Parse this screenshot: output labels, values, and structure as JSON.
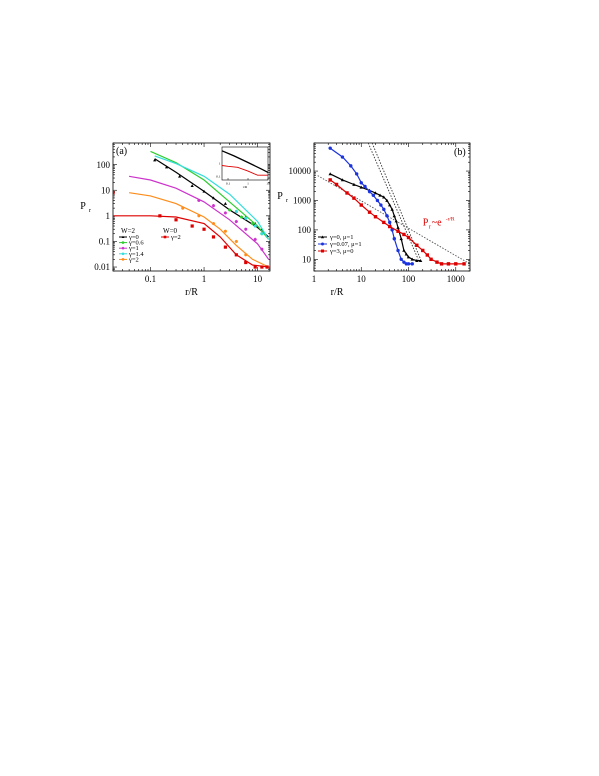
{
  "chart_data": [
    {
      "type": "line",
      "panel_label": "(a)",
      "xlabel": "r/R",
      "ylabel": "P",
      "ylabel_sub": "r",
      "x_scale": "log",
      "y_scale": "log",
      "xlim": [
        0.02,
        17
      ],
      "ylim": [
        0.007,
        700
      ],
      "x_ticks": [
        {
          "v": 0.1,
          "label": "0.1"
        },
        {
          "v": 1,
          "label": "1"
        },
        {
          "v": 10,
          "label": "10"
        }
      ],
      "y_ticks": [
        {
          "v": 0.01,
          "label": "0.01"
        },
        {
          "v": 0.1,
          "label": "0.1"
        },
        {
          "v": 1,
          "label": "1"
        },
        {
          "v": 10,
          "label": "10"
        },
        {
          "v": 100,
          "label": "100"
        }
      ],
      "legend": {
        "group1": "W=2",
        "group2": "W=0",
        "placement": "bottom-left",
        "entries": [
          {
            "label": "γ=0",
            "color": "#000000",
            "marker": "triangle"
          },
          {
            "label": "γ=0.6",
            "color": "#2ecc2e",
            "marker": "star"
          },
          {
            "label": "γ=1",
            "color": "#cc33cc",
            "marker": "star"
          },
          {
            "label": "γ=1.4",
            "color": "#33dddd",
            "marker": "star"
          },
          {
            "label": "γ=2",
            "color": "#ff8c1a",
            "marker": "star"
          },
          {
            "label": "γ=2",
            "color": "#dd0000",
            "marker": "square",
            "group": "W=0"
          }
        ]
      },
      "series": [
        {
          "color": "#000000",
          "line": {
            "x": [
              0.12,
              0.3,
              1,
              3,
              10,
              16
            ],
            "y": [
              170,
              50,
              9,
              1.7,
              0.35,
              0.15
            ]
          },
          "points": {
            "x": [
              0.12,
              0.2,
              0.35,
              0.6,
              1,
              1.5,
              2.5,
              4,
              6,
              9,
              12
            ],
            "y": [
              150,
              80,
              35,
              15,
              9,
              5,
              3,
              1.5,
              0.9,
              0.5,
              0.3
            ]
          }
        },
        {
          "color": "#2ecc2e",
          "line": {
            "x": [
              0.1,
              0.3,
              1,
              3,
              10,
              16
            ],
            "y": [
              330,
              120,
              25,
              3.5,
              0.4,
              0.12
            ]
          },
          "points": {
            "x": [
              3,
              5,
              8,
              12
            ],
            "y": [
              1.7,
              0.9,
              0.5,
              0.2
            ]
          }
        },
        {
          "color": "#cc33cc",
          "line": {
            "x": [
              0.04,
              0.1,
              0.3,
              1,
              3,
              10,
              16
            ],
            "y": [
              35,
              25,
              12,
              3.5,
              0.7,
              0.08,
              0.02
            ]
          },
          "points": {
            "x": [
              0.8,
              1.5,
              2.5,
              4,
              6,
              9,
              12
            ],
            "y": [
              4,
              2.5,
              1.3,
              0.6,
              0.3,
              0.12,
              0.05
            ]
          }
        },
        {
          "color": "#33dddd",
          "line": {
            "x": [
              0.12,
              0.3,
              1,
              3,
              10,
              16
            ],
            "y": [
              220,
              110,
              35,
              7,
              0.6,
              0.12
            ]
          },
          "points": {
            "x": [
              4,
              6,
              9,
              12
            ],
            "y": [
              1.5,
              0.8,
              0.4,
              0.2
            ]
          }
        },
        {
          "color": "#ff8c1a",
          "line": {
            "x": [
              0.04,
              0.1,
              0.3,
              1,
              2,
              4,
              8,
              16
            ],
            "y": [
              8,
              6,
              3,
              0.9,
              0.3,
              0.07,
              0.02,
              0.01
            ]
          },
          "points": {
            "x": [
              0.4,
              0.8,
              1.5,
              2.5,
              4,
              6
            ],
            "y": [
              2,
              1,
              0.5,
              0.25,
              0.1,
              0.03
            ]
          }
        },
        {
          "color": "#dd0000",
          "line": {
            "x": [
              0.02,
              0.1,
              0.3,
              1,
              2,
              4,
              8,
              16
            ],
            "y": [
              1,
              1,
              0.9,
              0.5,
              0.15,
              0.03,
              0.012,
              0.01
            ]
          },
          "points": {
            "x": [
              0.02,
              0.15,
              0.3,
              0.6,
              1,
              1.5,
              2.5,
              4,
              6,
              9,
              12,
              15
            ],
            "y": [
              8,
              1,
              0.7,
              0.4,
              0.3,
              0.15,
              0.06,
              0.03,
              0.015,
              0.01,
              0.01,
              0.01
            ]
          }
        }
      ],
      "inset": {
        "x_scale": "log",
        "y_scale": "log",
        "xlim": [
          0.05,
          10
        ],
        "ylim": [
          0.05,
          20
        ],
        "xlabel": "r/R",
        "x_ticks": [
          {
            "v": 0.1,
            "label": "0.1"
          },
          {
            "v": 1,
            "label": "1"
          },
          {
            "v": 10,
            "label": "10"
          }
        ],
        "y_ticks": [
          {
            "v": 0.1,
            "label": "0.1"
          },
          {
            "v": 1,
            "label": "1"
          }
        ],
        "series": [
          {
            "color": "#000000",
            "x": [
              0.05,
              0.2,
              1,
              5,
              10
            ],
            "y": [
              10,
              4,
              1.2,
              0.35,
              0.2
            ]
          },
          {
            "color": "#dd0000",
            "x": [
              0.05,
              0.1,
              0.3,
              1,
              3,
              10
            ],
            "y": [
              0.7,
              0.6,
              0.5,
              0.25,
              0.12,
              0.12
            ]
          }
        ]
      }
    },
    {
      "type": "line",
      "panel_label": "(b)",
      "xlabel": "r/R",
      "ylabel": "P",
      "ylabel_sub": "r",
      "x_scale": "log",
      "y_scale": "log",
      "xlim": [
        1,
        2000
      ],
      "ylim": [
        4,
        90000
      ],
      "x_ticks": [
        {
          "v": 1,
          "label": "1"
        },
        {
          "v": 10,
          "label": "10"
        },
        {
          "v": 100,
          "label": "100"
        },
        {
          "v": 1000,
          "label": "1000"
        }
      ],
      "y_ticks": [
        {
          "v": 10,
          "label": "10"
        },
        {
          "v": 100,
          "label": "100"
        },
        {
          "v": 1000,
          "label": "1000"
        },
        {
          "v": 10000,
          "label": "10000"
        }
      ],
      "annotation": {
        "text": "P",
        "sub": "r",
        "rest": "~e",
        "sup": "-r/R",
        "color": "#dd0000",
        "x": 200,
        "y": 140
      },
      "legend": {
        "placement": "bottom-left",
        "entries": [
          {
            "label": "γ=0, μ=1",
            "color": "#000000",
            "marker": "triangle"
          },
          {
            "label": "γ=0.07, μ=1",
            "color": "#1a33dd",
            "marker": "circle"
          },
          {
            "label": "γ=3, μ=0",
            "color": "#dd0000",
            "marker": "square"
          }
        ]
      },
      "series": [
        {
          "color": "#000000",
          "x": [
            2.2,
            4,
            7,
            10,
            15,
            20,
            25,
            30,
            35,
            40,
            45,
            50,
            55,
            60,
            70,
            80,
            90,
            100,
            120,
            150,
            180
          ],
          "y": [
            8000,
            5000,
            3500,
            2800,
            2200,
            1800,
            1500,
            1300,
            1000,
            700,
            500,
            300,
            200,
            120,
            50,
            20,
            15,
            12,
            10,
            9,
            9
          ]
        },
        {
          "color": "#1a33dd",
          "x": [
            2.2,
            4,
            6,
            8,
            10,
            12,
            15,
            18,
            22,
            26,
            30,
            35,
            40,
            45,
            50,
            60,
            70,
            80,
            90,
            100,
            120
          ],
          "y": [
            60000,
            30000,
            15000,
            8000,
            4000,
            3000,
            2000,
            1500,
            1000,
            700,
            500,
            300,
            180,
            100,
            50,
            20,
            10,
            8,
            7,
            7,
            7
          ]
        },
        {
          "color": "#dd0000",
          "x": [
            2.2,
            3,
            5,
            7,
            10,
            15,
            20,
            30,
            40,
            60,
            80,
            100,
            150,
            200,
            250,
            300,
            400,
            500,
            700,
            1000,
            1500
          ],
          "y": [
            5000,
            3500,
            1800,
            1200,
            700,
            400,
            280,
            180,
            130,
            90,
            70,
            55,
            30,
            20,
            14,
            10,
            8,
            7,
            7,
            7,
            7
          ]
        }
      ],
      "reference_lines": [
        {
          "style": "dotted",
          "color": "#555555",
          "x": [
            1.2,
            2000
          ],
          "y": [
            7000,
            7
          ]
        },
        {
          "style": "dotted",
          "color": "#333333",
          "x": [
            14,
            160
          ],
          "y": [
            90000,
            10
          ]
        },
        {
          "style": "dotted",
          "color": "#333333",
          "x": [
            17,
            180
          ],
          "y": [
            90000,
            10
          ]
        }
      ]
    }
  ]
}
